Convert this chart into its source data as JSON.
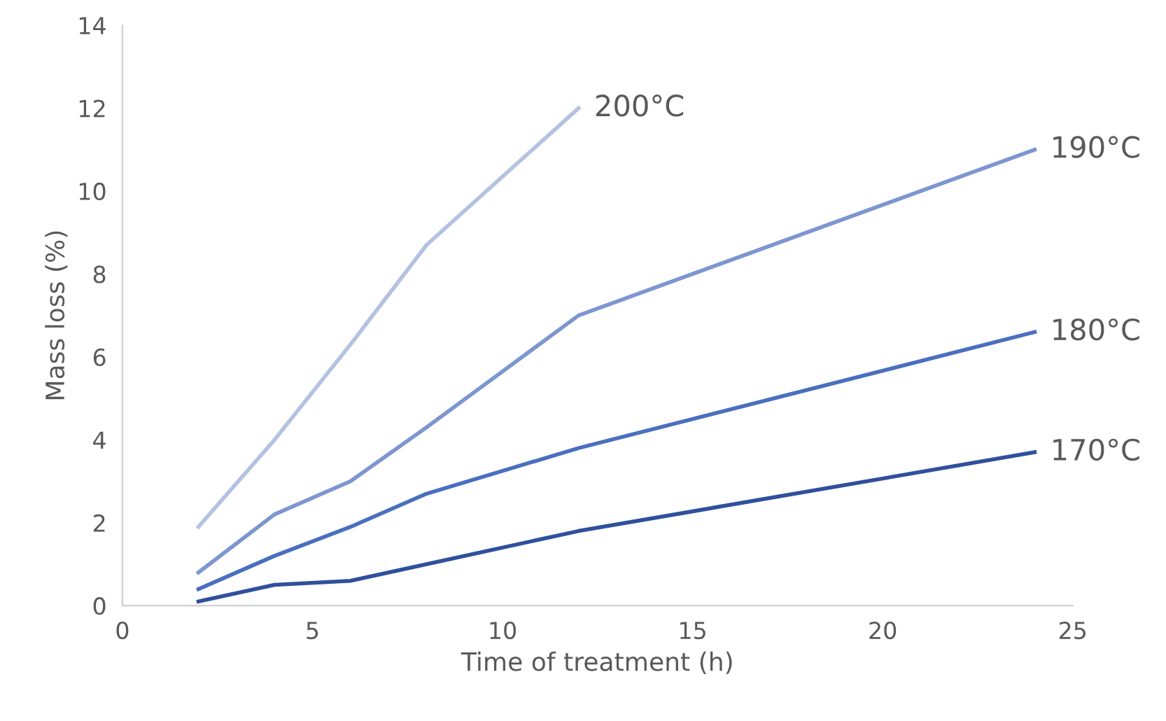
{
  "chart_data": {
    "type": "line",
    "xlabel": "Time of treatment (h)",
    "ylabel": "Mass loss (%)",
    "xlim": [
      0,
      25
    ],
    "xticks": [
      0,
      5,
      10,
      15,
      20,
      25
    ],
    "ylim": [
      0,
      14
    ],
    "yticks": [
      0,
      2,
      4,
      6,
      8,
      10,
      12,
      14
    ],
    "grid": false,
    "legend": false,
    "marker": "none",
    "line_style": "solid",
    "series": [
      {
        "name": "200°C",
        "color": "#b4c2e2",
        "x": [
          2,
          4,
          6,
          8,
          12
        ],
        "values": [
          1.9,
          4.0,
          6.3,
          8.7,
          12.0
        ]
      },
      {
        "name": "190°C",
        "color": "#7d96d0",
        "x": [
          2,
          4,
          6,
          8,
          12,
          24
        ],
        "values": [
          0.8,
          2.2,
          3.0,
          4.3,
          7.0,
          11.0
        ]
      },
      {
        "name": "180°C",
        "color": "#4a6fbf",
        "x": [
          2,
          4,
          6,
          8,
          12,
          24
        ],
        "values": [
          0.4,
          1.2,
          1.9,
          2.7,
          3.8,
          6.6
        ]
      },
      {
        "name": "170°C",
        "color": "#2f509c",
        "x": [
          2,
          4,
          6,
          8,
          12,
          24
        ],
        "values": [
          0.1,
          0.5,
          0.6,
          1.0,
          1.8,
          3.7
        ]
      }
    ]
  }
}
